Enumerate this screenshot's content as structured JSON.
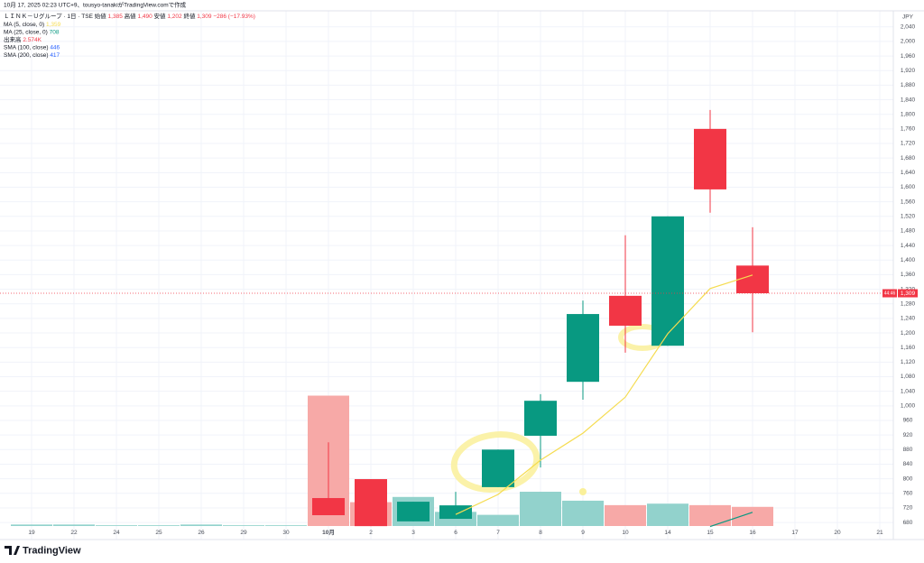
{
  "chart_data": {
    "type": "candlestick",
    "created": "10月 17, 2025 02:23 UTC+9、tousyo-tanakiがTradingView.comで作成",
    "title": "ＬＩＮＫ－Ｕグループ · 1日 · TSE",
    "ohlc_text": [
      {
        "label": "始値",
        "value": "1,385"
      },
      {
        "label": "高値",
        "value": "1,490"
      },
      {
        "label": "安値",
        "value": "1,202"
      },
      {
        "label": "終値",
        "value": "1,309"
      }
    ],
    "change_text": "−286 (−17.93%)",
    "legend": [
      {
        "name": "MA (5, close, 0)",
        "value": "1,359",
        "color": "#f5dc50"
      },
      {
        "name": "MA (25, close, 0)",
        "value": "708",
        "color": "#089981"
      },
      {
        "name": "出来高",
        "value": "2.574K",
        "color": "#f23645"
      },
      {
        "name": "SMA (100, close)",
        "value": "446",
        "color": "#2962ff"
      },
      {
        "name": "SMA (200, close)",
        "value": "417",
        "color": "#2962ff"
      }
    ],
    "currency": "JPY",
    "brand": "TradingView",
    "categories": [
      "19",
      "22",
      "24",
      "25",
      "26",
      "29",
      "30",
      "10月",
      "2",
      "3",
      "6",
      "7",
      "8",
      "9",
      "10",
      "14",
      "15",
      "16",
      "17",
      "20",
      "21"
    ],
    "open": [
      null,
      null,
      null,
      null,
      null,
      null,
      null,
      747,
      799,
      683,
      690,
      777,
      918,
      1066,
      1302,
      1165,
      1760,
      1385,
      null,
      null,
      null
    ],
    "high": [
      null,
      null,
      null,
      null,
      null,
      null,
      null,
      900,
      799,
      737,
      764,
      880,
      1032,
      1289,
      1468,
      1520,
      1812,
      1490,
      null,
      null,
      null
    ],
    "low": [
      null,
      null,
      null,
      null,
      null,
      null,
      null,
      700,
      670,
      683,
      690,
      777,
      831,
      1017,
      1146,
      1165,
      1530,
      1202,
      null,
      null,
      null
    ],
    "close": [
      null,
      null,
      null,
      null,
      null,
      null,
      null,
      700,
      670,
      737,
      727,
      880,
      1014,
      1252,
      1220,
      1520,
      1594,
      1309,
      null,
      null,
      null
    ],
    "volume": [
      0.2,
      0.2,
      0.1,
      0.1,
      0.2,
      0.1,
      0.1,
      17.5,
      3.2,
      3.9,
      1.9,
      1.5,
      4.6,
      3.4,
      2.8,
      3.0,
      2.8,
      2.57,
      null,
      null,
      null
    ],
    "vlim": [
      0,
      70
    ],
    "series": [
      {
        "name": "MA (5, close, 0)",
        "color": "#f5dc50",
        "values": [
          null,
          null,
          null,
          null,
          null,
          null,
          null,
          null,
          null,
          null,
          702,
          757,
          851,
          925,
          1024,
          1198,
          1322,
          1359,
          null,
          null,
          null
        ]
      },
      {
        "name": "MA (25, close, 0)",
        "color": "#089981",
        "values": [
          null,
          null,
          null,
          null,
          null,
          null,
          null,
          null,
          null,
          null,
          null,
          null,
          null,
          null,
          null,
          null,
          669,
          708,
          null,
          null,
          null
        ]
      }
    ],
    "up_color": "#089981",
    "down_color": "#f23645",
    "up_volume_color": "#92d2cc",
    "down_volume_color": "#f7a9a7",
    "last_price": {
      "value": 1309,
      "label": "1,309"
    },
    "countdown": "44:46",
    "ylim": [
      653,
      2084
    ],
    "yticks": [
      680,
      720,
      760,
      800,
      840,
      880,
      920,
      960,
      {
        "value": 1000,
        "label": "1,000"
      },
      {
        "value": 1040,
        "label": "1,040"
      },
      {
        "value": 1080,
        "label": "1,080"
      },
      {
        "value": 1120,
        "label": "1,120"
      },
      {
        "value": 1160,
        "label": "1,160"
      },
      {
        "value": 1200,
        "label": "1,200"
      },
      {
        "value": 1240,
        "label": "1,240"
      },
      {
        "value": 1280,
        "label": "1,280"
      },
      {
        "value": 1320,
        "label": "1,320"
      },
      {
        "value": 1360,
        "label": "1,360"
      },
      {
        "value": 1400,
        "label": "1,400"
      },
      {
        "value": 1440,
        "label": "1,440"
      },
      {
        "value": 1480,
        "label": "1,480"
      },
      {
        "value": 1520,
        "label": "1,520"
      },
      {
        "value": 1560,
        "label": "1,560"
      },
      {
        "value": 1600,
        "label": "1,600"
      },
      {
        "value": 1640,
        "label": "1,640"
      },
      {
        "value": 1680,
        "label": "1,680"
      },
      {
        "value": 1720,
        "label": "1,720"
      },
      {
        "value": 1760,
        "label": "1,760"
      },
      {
        "value": 1800,
        "label": "1,800"
      },
      {
        "value": 1840,
        "label": "1,840"
      },
      {
        "value": 1880,
        "label": "1,880"
      },
      {
        "value": 1920,
        "label": "1,920"
      },
      {
        "value": 1960,
        "label": "1,960"
      },
      {
        "value": 2000,
        "label": "2,000"
      },
      {
        "value": 2040,
        "label": "2,040"
      }
    ],
    "grid": true
  }
}
